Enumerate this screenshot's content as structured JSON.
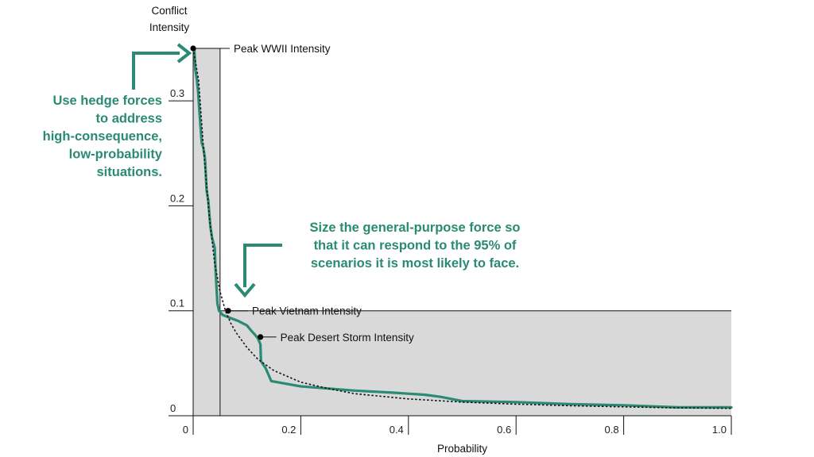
{
  "chart_data": {
    "type": "line",
    "xlabel": "Probability",
    "ylabel_lines": [
      "Conflict",
      "Intensity"
    ],
    "xlim": [
      0,
      1.0
    ],
    "ylim": [
      0,
      0.35
    ],
    "x_ticks": [
      "0",
      "0.2",
      "0.4",
      "0.6",
      "0.8",
      "1.0"
    ],
    "x_tick_values": [
      0,
      0.2,
      0.4,
      0.6,
      0.8,
      1.0
    ],
    "y_ticks": [
      "0",
      "0.1",
      "0.2",
      "0.3"
    ],
    "y_tick_values": [
      0,
      0.1,
      0.2,
      0.3
    ],
    "shaded_regions": [
      {
        "x": [
          0,
          0.05
        ],
        "y": [
          0,
          0.35
        ]
      },
      {
        "x": [
          0.05,
          1.0
        ],
        "y": [
          0,
          0.1
        ]
      }
    ],
    "series": [
      {
        "style": "solid",
        "color": "#2a8a73",
        "points": [
          [
            0.002,
            0.35
          ],
          [
            0.004,
            0.33
          ],
          [
            0.007,
            0.32
          ],
          [
            0.009,
            0.31
          ],
          [
            0.011,
            0.295
          ],
          [
            0.013,
            0.28
          ],
          [
            0.016,
            0.26
          ],
          [
            0.019,
            0.255
          ],
          [
            0.022,
            0.245
          ],
          [
            0.025,
            0.215
          ],
          [
            0.028,
            0.205
          ],
          [
            0.032,
            0.18
          ],
          [
            0.035,
            0.17
          ],
          [
            0.04,
            0.16
          ],
          [
            0.042,
            0.135
          ],
          [
            0.045,
            0.107
          ],
          [
            0.048,
            0.1
          ],
          [
            0.055,
            0.096
          ],
          [
            0.07,
            0.093
          ],
          [
            0.085,
            0.09
          ],
          [
            0.1,
            0.086
          ],
          [
            0.108,
            0.081
          ],
          [
            0.115,
            0.077
          ],
          [
            0.12,
            0.074
          ],
          [
            0.125,
            0.068
          ],
          [
            0.126,
            0.052
          ],
          [
            0.135,
            0.045
          ],
          [
            0.145,
            0.033
          ],
          [
            0.2,
            0.028
          ],
          [
            0.3,
            0.024
          ],
          [
            0.37,
            0.022
          ],
          [
            0.43,
            0.02
          ],
          [
            0.46,
            0.018
          ],
          [
            0.49,
            0.015
          ],
          [
            0.5,
            0.014
          ],
          [
            0.6,
            0.013
          ],
          [
            0.7,
            0.011
          ],
          [
            0.8,
            0.01
          ],
          [
            0.9,
            0.008
          ],
          [
            1.0,
            0.008
          ]
        ]
      },
      {
        "style": "dotted",
        "color": "#111111",
        "points": [
          [
            0.0,
            0.35
          ],
          [
            0.01,
            0.32
          ],
          [
            0.02,
            0.25
          ],
          [
            0.03,
            0.19
          ],
          [
            0.04,
            0.145
          ],
          [
            0.05,
            0.118
          ],
          [
            0.06,
            0.1
          ],
          [
            0.07,
            0.088
          ],
          [
            0.08,
            0.079
          ],
          [
            0.1,
            0.065
          ],
          [
            0.12,
            0.054
          ],
          [
            0.15,
            0.043
          ],
          [
            0.2,
            0.032
          ],
          [
            0.25,
            0.026
          ],
          [
            0.3,
            0.021
          ],
          [
            0.4,
            0.016
          ],
          [
            0.5,
            0.013
          ],
          [
            0.6,
            0.011
          ],
          [
            0.7,
            0.0095
          ],
          [
            0.8,
            0.0085
          ],
          [
            0.9,
            0.0075
          ],
          [
            1.0,
            0.007
          ]
        ]
      }
    ],
    "annotations": [
      {
        "label": "Peak WWII Intensity",
        "x": 0.0,
        "y": 0.35
      },
      {
        "label": "Peak Vietnam Intensity",
        "x": 0.065,
        "y": 0.1
      },
      {
        "label": "Peak Desert Storm Intensity",
        "x": 0.125,
        "y": 0.075
      }
    ],
    "callouts": [
      {
        "lines": [
          "Use hedge forces",
          "to address",
          "high-consequence,",
          "low-probability",
          "situations."
        ],
        "color": "#2a8a73"
      },
      {
        "lines": [
          "Size the general-purpose force so",
          "that it can respond to the 95% of",
          "scenarios it is most likely to face."
        ],
        "color": "#2a8a73"
      }
    ],
    "grid": false,
    "legend": "none"
  }
}
